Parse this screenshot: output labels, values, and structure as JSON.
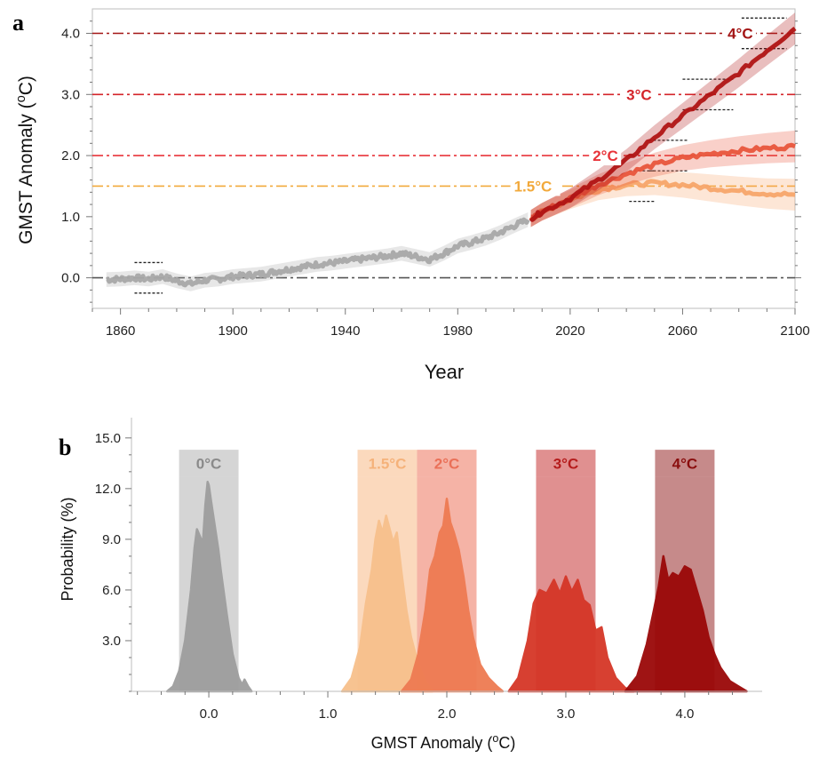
{
  "chart_data": [
    {
      "panel": "a",
      "type": "line",
      "xlabel": "Year",
      "ylabel": "GMST Anomaly (oC)",
      "xlim": [
        1850,
        2100
      ],
      "ylim": [
        -0.5,
        4.4
      ],
      "xticks": [
        {
          "value": 1860,
          "label": "1860"
        },
        {
          "value": 1900,
          "label": "1900"
        },
        {
          "value": 1940,
          "label": "1940"
        },
        {
          "value": 1980,
          "label": "1980"
        },
        {
          "value": 2020,
          "label": "2020"
        },
        {
          "value": 2060,
          "label": "2060"
        },
        {
          "value": 2100,
          "label": "2100"
        }
      ],
      "yticks": [
        {
          "value": 0,
          "label": "0.0"
        },
        {
          "value": 1,
          "label": "1.0"
        },
        {
          "value": 2,
          "label": "2.0"
        },
        {
          "value": 3,
          "label": "3.0"
        },
        {
          "value": 4,
          "label": "4.0"
        }
      ],
      "thresholds": [
        {
          "value": 0.0,
          "label": "",
          "color": "#555555",
          "label_x": 2000
        },
        {
          "value": 1.5,
          "label": "1.5°C",
          "color": "#f2a93b",
          "label_x": 2000
        },
        {
          "value": 2.0,
          "label": "2°C",
          "color": "#e8343a",
          "label_x": 2028
        },
        {
          "value": 3.0,
          "label": "3°C",
          "color": "#d4242a",
          "label_x": 2040
        },
        {
          "value": 4.0,
          "label": "4°C",
          "color": "#a31515",
          "label_x": 2076
        }
      ],
      "series": [
        {
          "color": "#a8a8a8",
          "x": [
            1855,
            1860,
            1865,
            1870,
            1875,
            1880,
            1885,
            1890,
            1895,
            1900,
            1905,
            1910,
            1915,
            1920,
            1925,
            1930,
            1935,
            1940,
            1945,
            1950,
            1955,
            1960,
            1965,
            1970,
            1975,
            1980,
            1985,
            1990,
            1995,
            2000,
            2005
          ],
          "y": [
            -0.03,
            -0.02,
            0.0,
            -0.02,
            0.02,
            -0.05,
            -0.1,
            -0.04,
            -0.02,
            0.02,
            0.04,
            0.06,
            0.1,
            0.14,
            0.18,
            0.22,
            0.24,
            0.27,
            0.3,
            0.33,
            0.36,
            0.4,
            0.35,
            0.3,
            0.4,
            0.52,
            0.58,
            0.65,
            0.74,
            0.85,
            0.95
          ]
        },
        {
          "color": "#f7a56a",
          "x": [
            2006,
            2010,
            2020,
            2030,
            2040,
            2050,
            2060,
            2070,
            2080,
            2090,
            2100
          ],
          "y": [
            0.97,
            1.08,
            1.28,
            1.44,
            1.52,
            1.55,
            1.52,
            1.47,
            1.42,
            1.38,
            1.36
          ]
        },
        {
          "color": "#e8553c",
          "x": [
            2006,
            2010,
            2020,
            2030,
            2040,
            2050,
            2060,
            2070,
            2080,
            2090,
            2100
          ],
          "y": [
            0.97,
            1.08,
            1.3,
            1.52,
            1.7,
            1.85,
            1.96,
            2.03,
            2.08,
            2.12,
            2.15
          ]
        },
        {
          "color": "#b01414",
          "x": [
            2006,
            2010,
            2020,
            2030,
            2040,
            2050,
            2060,
            2070,
            2080,
            2090,
            2100
          ],
          "y": [
            0.97,
            1.08,
            1.3,
            1.6,
            1.92,
            2.3,
            2.65,
            3.0,
            3.35,
            3.72,
            4.08
          ]
        }
      ],
      "ranges": [
        {
          "x": [
            1865,
            1875
          ],
          "y": [
            0.25,
            -0.25
          ]
        },
        {
          "x": [
            2041,
            2050
          ],
          "y": [
            1.75,
            1.25
          ]
        },
        {
          "x": [
            2048,
            2062
          ],
          "y": [
            2.25,
            1.75
          ]
        },
        {
          "x": [
            2060,
            2078
          ],
          "y": [
            3.25,
            2.75
          ]
        },
        {
          "x": [
            2081,
            2097
          ],
          "y": [
            4.25,
            3.75
          ]
        }
      ]
    },
    {
      "panel": "b",
      "type": "area",
      "xlabel": "GMST Anomaly (oC)",
      "ylabel": "Probability (%)",
      "xlim": [
        -0.65,
        4.65
      ],
      "ylim": [
        0,
        16.2
      ],
      "xticks": [
        {
          "value": 0,
          "label": "0.0"
        },
        {
          "value": 1,
          "label": "1.0"
        },
        {
          "value": 2,
          "label": "2.0"
        },
        {
          "value": 3,
          "label": "3.0"
        },
        {
          "value": 4,
          "label": "4.0"
        }
      ],
      "yticks": [
        {
          "value": 3,
          "label": "3.0"
        },
        {
          "value": 6,
          "label": "6.0"
        },
        {
          "value": 9,
          "label": "9.0"
        },
        {
          "value": 12,
          "label": "12.0"
        },
        {
          "value": 15,
          "label": "15.0"
        }
      ],
      "bands": [
        {
          "label": "0°C",
          "range": [
            -0.25,
            0.25
          ],
          "color": "#d5d5d5",
          "text_color": "#8a8a8a"
        },
        {
          "label": "1.5°C",
          "range": [
            1.25,
            1.75
          ],
          "color": "#fbd9bd",
          "text_color": "#f5b27a"
        },
        {
          "label": "2°C",
          "range": [
            1.75,
            2.25
          ],
          "color": "#f5b3a6",
          "text_color": "#ea7058"
        },
        {
          "label": "3°C",
          "range": [
            2.75,
            3.25
          ],
          "color": "#e09090",
          "text_color": "#b51d1d"
        },
        {
          "label": "4°C",
          "range": [
            3.75,
            4.25
          ],
          "color": "#c68a8a",
          "text_color": "#8a0e0e"
        }
      ],
      "series": [
        {
          "color": "#9e9e9e",
          "x": [
            -0.35,
            -0.3,
            -0.25,
            -0.2,
            -0.15,
            -0.12,
            -0.1,
            -0.07,
            -0.05,
            -0.03,
            -0.01,
            0.0,
            0.02,
            0.05,
            0.08,
            0.1,
            0.15,
            0.2,
            0.25,
            0.28,
            0.3,
            0.33,
            0.36
          ],
          "y": [
            0,
            0.3,
            1.2,
            3.0,
            6.0,
            8.5,
            9.6,
            9.1,
            8.8,
            11.0,
            12.4,
            12.2,
            11.2,
            9.8,
            8.4,
            7.2,
            4.6,
            2.2,
            0.8,
            0.4,
            0.7,
            0.3,
            0
          ]
        },
        {
          "color": "#f7c08c",
          "x": [
            1.12,
            1.2,
            1.27,
            1.32,
            1.37,
            1.4,
            1.43,
            1.46,
            1.49,
            1.52,
            1.55,
            1.58,
            1.62,
            1.66,
            1.7,
            1.76,
            1.82,
            1.88
          ],
          "y": [
            0,
            0.8,
            2.6,
            5.2,
            7.2,
            9.0,
            10.1,
            9.4,
            10.4,
            9.6,
            8.8,
            9.4,
            7.0,
            4.8,
            3.2,
            1.6,
            0.6,
            0
          ]
        },
        {
          "color": "#ee7b52",
          "x": [
            1.62,
            1.7,
            1.76,
            1.82,
            1.86,
            1.9,
            1.94,
            1.97,
            2.0,
            2.03,
            2.06,
            2.1,
            2.14,
            2.18,
            2.22,
            2.28,
            2.35,
            2.42,
            2.47
          ],
          "y": [
            0,
            0.7,
            2.2,
            4.8,
            7.2,
            8.0,
            9.4,
            9.8,
            11.4,
            10.0,
            9.4,
            8.4,
            6.8,
            4.8,
            3.2,
            1.6,
            0.8,
            0.3,
            0
          ]
        },
        {
          "color": "#d53627",
          "x": [
            2.52,
            2.6,
            2.68,
            2.73,
            2.78,
            2.84,
            2.9,
            2.95,
            3.0,
            3.05,
            3.1,
            3.15,
            3.2,
            3.25,
            3.3,
            3.35,
            3.42,
            3.5,
            3.57
          ],
          "y": [
            0,
            0.8,
            3.0,
            5.2,
            6.0,
            5.8,
            6.6,
            5.8,
            6.8,
            5.9,
            6.6,
            5.4,
            5.1,
            3.6,
            3.8,
            2.0,
            0.8,
            0.2,
            0
          ]
        },
        {
          "color": "#9a0808",
          "x": [
            3.5,
            3.6,
            3.68,
            3.74,
            3.78,
            3.82,
            3.86,
            3.9,
            3.95,
            4.0,
            4.05,
            4.1,
            4.15,
            4.2,
            4.25,
            4.3,
            4.38,
            4.45,
            4.52
          ],
          "y": [
            0,
            0.9,
            2.8,
            4.8,
            6.2,
            8.0,
            6.6,
            7.0,
            6.8,
            7.4,
            7.2,
            6.0,
            4.8,
            3.2,
            2.2,
            1.4,
            0.6,
            0.3,
            0
          ]
        }
      ]
    }
  ]
}
